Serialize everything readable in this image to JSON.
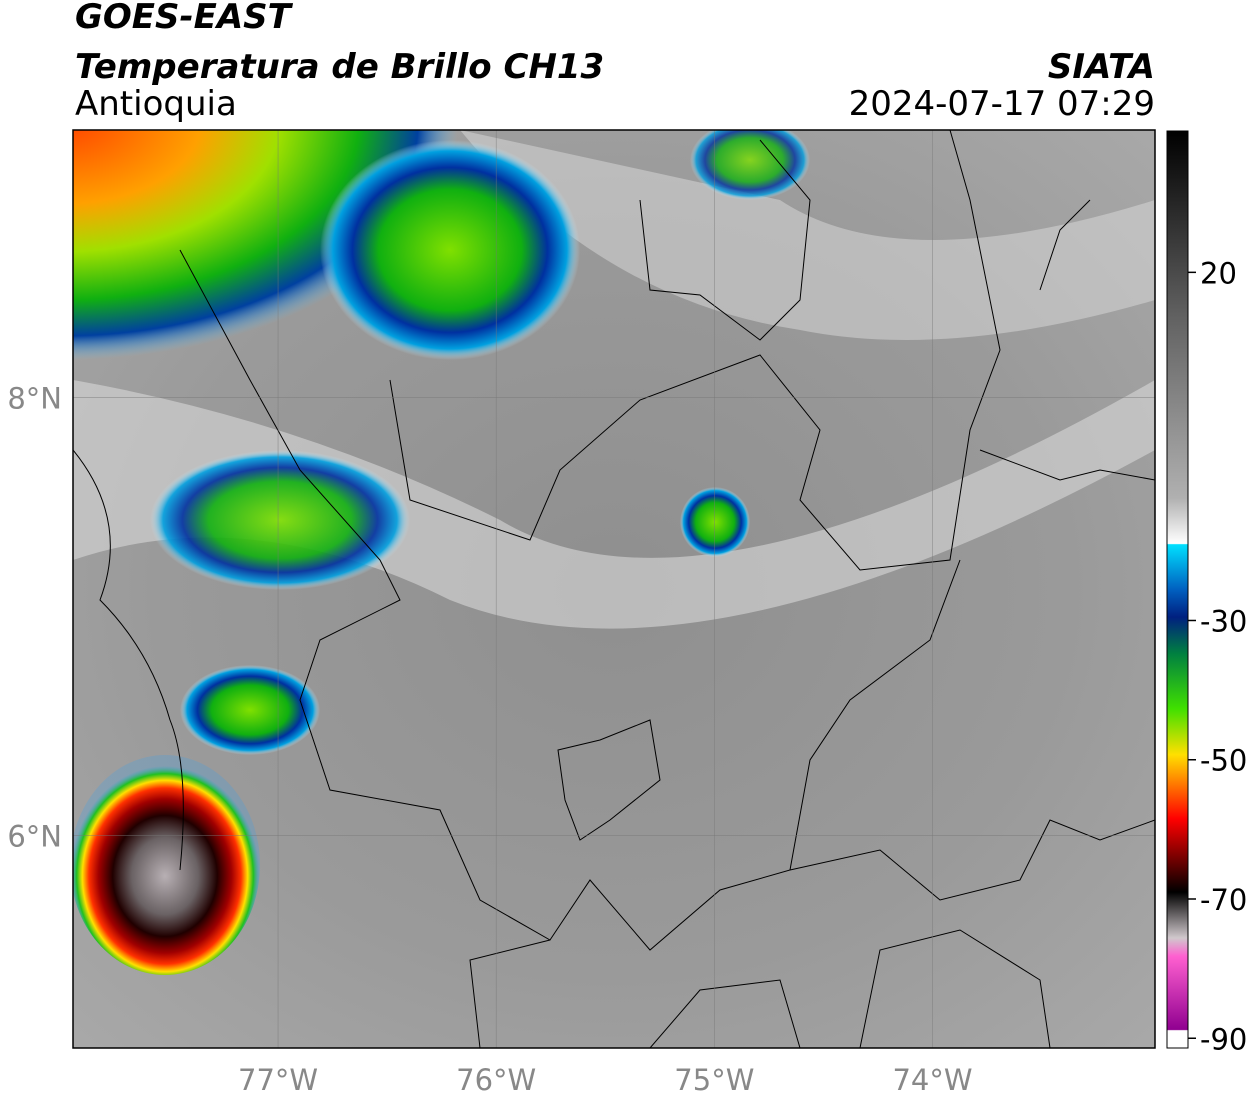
{
  "header": {
    "title": "GOES-EAST",
    "subtitle": "Temperatura de Brillo CH13",
    "region": "Antioquia",
    "source": "SIATA",
    "timestamp": "2024-07-17 07:29"
  },
  "map": {
    "xlim": [
      -77.94,
      -72.98
    ],
    "ylim": [
      5.03,
      9.22
    ],
    "xticks": [
      {
        "value": -77,
        "label": "77°W"
      },
      {
        "value": -76,
        "label": "76°W"
      },
      {
        "value": -75,
        "label": "75°W"
      },
      {
        "value": -74,
        "label": "74°W"
      }
    ],
    "yticks": [
      {
        "value": 8,
        "label": "8°N"
      },
      {
        "value": 6,
        "label": "6°N"
      }
    ],
    "grid": true
  },
  "colorbar": {
    "lim": [
      -91.4,
      40.3
    ],
    "ticks": [
      20,
      -30,
      -50,
      -70,
      -90
    ]
  }
}
